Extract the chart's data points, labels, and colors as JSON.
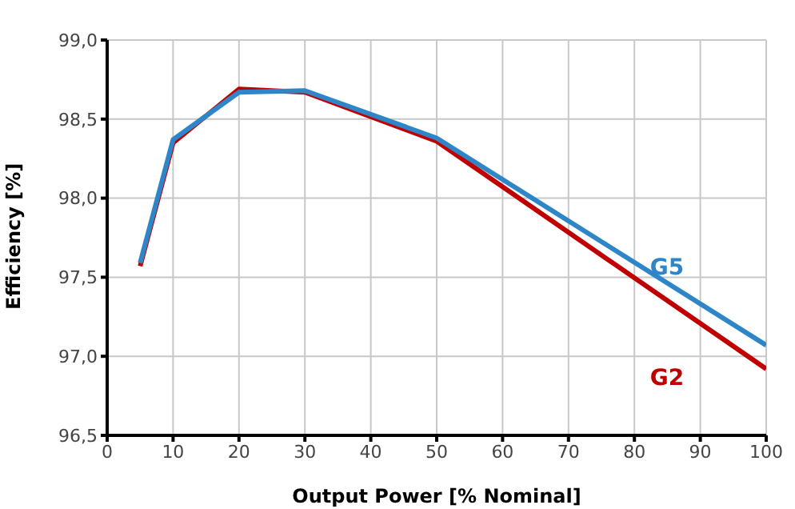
{
  "chart_data": {
    "type": "line",
    "xlabel": "Output Power [% Nominal]",
    "ylabel": "Efficiency [%]",
    "x": [
      5,
      10,
      20,
      30,
      50,
      100
    ],
    "series": [
      {
        "name": "G2",
        "color": "#c00000",
        "values": [
          97.57,
          98.35,
          98.69,
          98.67,
          98.36,
          96.92
        ]
      },
      {
        "name": "G5",
        "color": "#2e86c8",
        "values": [
          97.59,
          98.37,
          98.67,
          98.68,
          98.38,
          97.07
        ]
      }
    ],
    "xlim": [
      0,
      100
    ],
    "xticks": [
      0,
      10,
      20,
      30,
      40,
      50,
      60,
      70,
      80,
      90,
      100
    ],
    "ylim": [
      96.5,
      99
    ],
    "yticks": [
      {
        "value": 96.5,
        "label": "96,5"
      },
      {
        "value": 97,
        "label": "97,0"
      },
      {
        "value": 97.5,
        "label": "97,5"
      },
      {
        "value": 98,
        "label": "98,0"
      },
      {
        "value": 98.5,
        "label": "98,5"
      },
      {
        "value": 99,
        "label": "99,0"
      }
    ],
    "grid": true,
    "legend": false,
    "marker": "none",
    "line_style": "solid"
  }
}
